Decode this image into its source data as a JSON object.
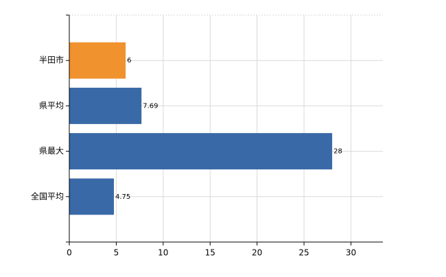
{
  "chart_data": {
    "type": "barh",
    "categories": [
      "半田市",
      "県平均",
      "県最大",
      "全国平均"
    ],
    "values": [
      6,
      7.69,
      28,
      4.75
    ],
    "colors": [
      "#f0922e",
      "#3a69a8",
      "#3a69a8",
      "#3a69a8"
    ],
    "xlim": [
      0,
      33.4
    ],
    "xticks": [
      0,
      5,
      10,
      15,
      20,
      25,
      30
    ],
    "grid": true
  }
}
